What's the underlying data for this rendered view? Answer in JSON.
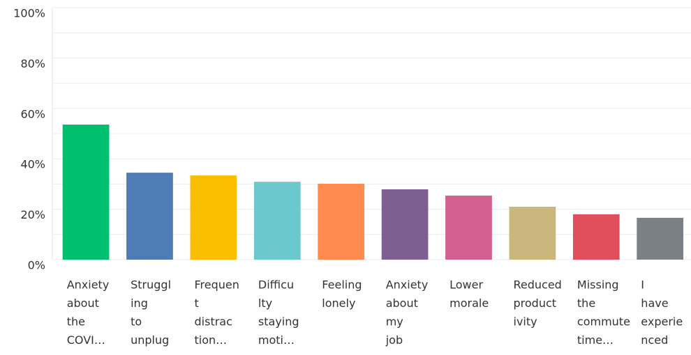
{
  "chart_data": {
    "type": "bar",
    "categories": [
      [
        "Anxiety",
        "about",
        "the",
        "COVI…"
      ],
      [
        "Struggl",
        "ing",
        "to",
        "unplug"
      ],
      [
        "Frequen",
        "t",
        "distrac",
        "tion…"
      ],
      [
        "Difficu",
        "lty",
        "staying",
        "moti…"
      ],
      [
        "Feeling",
        "lonely"
      ],
      [
        "Anxiety",
        "about",
        "my",
        "job"
      ],
      [
        "Lower",
        "morale"
      ],
      [
        "Reduced",
        "product",
        "ivity"
      ],
      [
        "Missing",
        "the",
        "commute",
        "time…"
      ],
      [
        "I",
        "have",
        "experie",
        "nced"
      ]
    ],
    "values": [
      53.6,
      34.5,
      33.4,
      30.9,
      30.1,
      27.9,
      25.4,
      21.0,
      18.0,
      16.6
    ],
    "colors": [
      "#00bf6f",
      "#507cb6",
      "#f9be00",
      "#6bc8cd",
      "#ff8b4f",
      "#7f5e91",
      "#d25f90",
      "#c9b77c",
      "#df4e5a",
      "#7b7f86"
    ],
    "ylim": [
      0,
      100
    ],
    "yticks": [
      {
        "value": 0,
        "label": "0%"
      },
      {
        "value": 20,
        "label": "20%"
      },
      {
        "value": 40,
        "label": "40%"
      },
      {
        "value": 60,
        "label": "60%"
      },
      {
        "value": 80,
        "label": "80%"
      },
      {
        "value": 100,
        "label": "100%"
      }
    ],
    "minor_yticks": [
      10,
      30,
      50,
      70,
      90
    ],
    "grid": true
  }
}
